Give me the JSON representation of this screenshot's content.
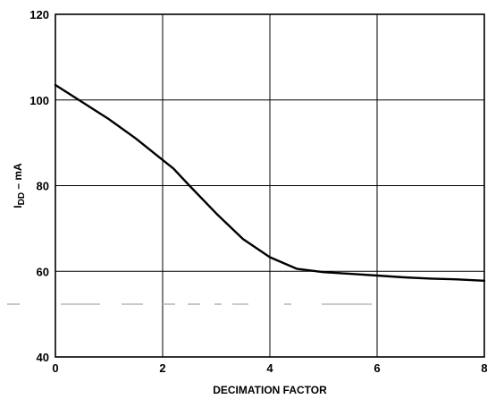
{
  "chart_data": {
    "type": "line",
    "xlabel": "DECIMATION FACTOR",
    "ylabel": {
      "main": "I",
      "sub": "DD",
      "suffix": " – mA"
    },
    "xlim": [
      0,
      8
    ],
    "ylim": [
      40,
      120
    ],
    "x_ticks": [
      0,
      2,
      4,
      6,
      8
    ],
    "y_ticks": [
      40,
      60,
      80,
      100,
      120
    ],
    "grid": true,
    "series": [
      {
        "x": [
          0,
          0.5,
          1.0,
          1.5,
          2.0,
          2.2,
          2.5,
          3.0,
          3.5,
          4.0,
          4.5,
          5.0,
          5.5,
          6.0,
          6.5,
          7.0,
          7.5,
          8.0
        ],
        "y": [
          103.5,
          99.5,
          95.5,
          91.0,
          86.0,
          84.0,
          80.0,
          73.5,
          67.5,
          63.3,
          60.6,
          59.8,
          59.4,
          59.0,
          58.6,
          58.3,
          58.1,
          57.8
        ]
      }
    ],
    "colors": {
      "line": "#000000",
      "grid": "#000000",
      "artifact": "#b8b8b8"
    }
  }
}
